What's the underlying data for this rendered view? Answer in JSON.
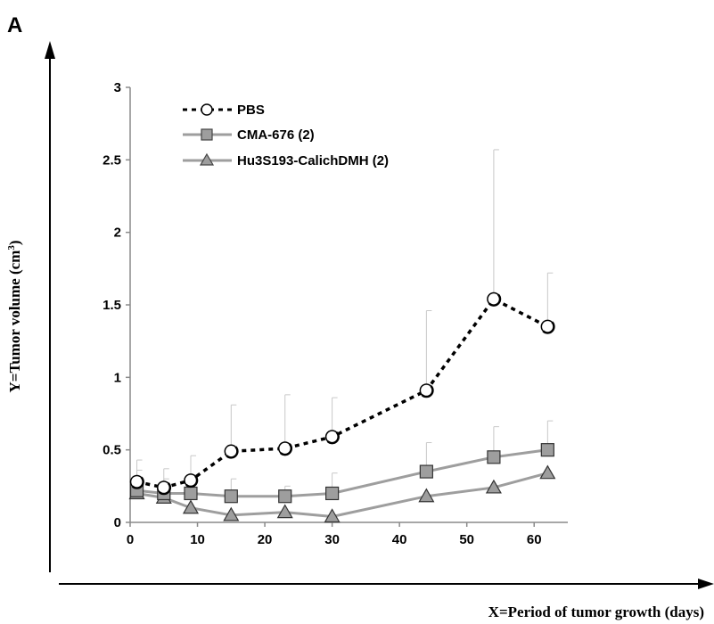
{
  "panel_label": "A",
  "chart_data": {
    "type": "line",
    "title": "",
    "xlabel": "X=Period of tumor growth (days)",
    "ylabel_prefix": "Y=Tumor volume (cm",
    "ylabel_sup": "3",
    "ylabel_suffix": ")",
    "xlim": [
      0,
      65
    ],
    "ylim": [
      0,
      3
    ],
    "xticks": [
      0,
      10,
      20,
      30,
      40,
      50,
      60
    ],
    "yticks": [
      0,
      0.5,
      1,
      1.5,
      2,
      2.5,
      3
    ],
    "ytick_labels": [
      "0",
      "0.5",
      "1",
      "1.5",
      "2",
      "2.5",
      "3"
    ],
    "grid": false,
    "legend_position": "top-left",
    "series": [
      {
        "name": "PBS",
        "line_style": "dotted",
        "marker": "circle",
        "color": "#000000",
        "x": [
          1,
          5,
          9,
          15,
          23,
          30,
          44,
          54,
          62
        ],
        "y": [
          0.28,
          0.24,
          0.29,
          0.49,
          0.51,
          0.59,
          0.91,
          1.54,
          1.35
        ],
        "err": [
          0.15,
          0.13,
          0.17,
          0.32,
          0.37,
          0.27,
          0.55,
          1.03,
          0.37
        ]
      },
      {
        "name": "CMA-676 (2)",
        "line_style": "solid",
        "marker": "square",
        "color": "#9e9e9e",
        "x": [
          1,
          5,
          9,
          15,
          23,
          30,
          44,
          54,
          62
        ],
        "y": [
          0.22,
          0.2,
          0.2,
          0.18,
          0.18,
          0.2,
          0.35,
          0.45,
          0.5
        ],
        "err": [
          0.14,
          0.1,
          0.0,
          0.12,
          0.07,
          0.14,
          0.2,
          0.21,
          0.2
        ]
      },
      {
        "name": "Hu3S193-CalichDMH (2)",
        "line_style": "solid",
        "marker": "triangle",
        "color": "#9e9e9e",
        "x": [
          1,
          5,
          9,
          15,
          23,
          30,
          44,
          54,
          62
        ],
        "y": [
          0.2,
          0.17,
          0.1,
          0.05,
          0.07,
          0.04,
          0.18,
          0.24,
          0.34
        ],
        "err": [
          0.0,
          0.0,
          0.0,
          0.0,
          0.0,
          0.0,
          0.0,
          0.0,
          0.0
        ]
      }
    ]
  }
}
